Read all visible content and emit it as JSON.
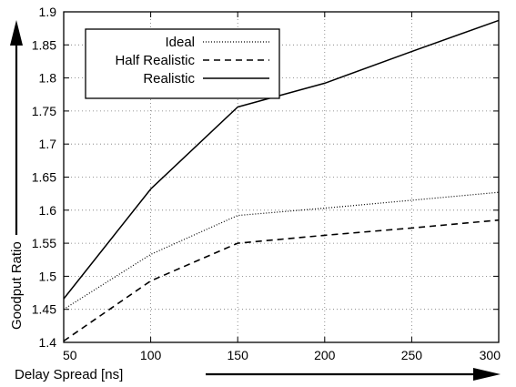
{
  "chart_data": {
    "type": "line",
    "xlabel": "Delay Spread [ns]",
    "ylabel": "Goodput Ratio",
    "xlim": [
      50,
      300
    ],
    "ylim": [
      1.4,
      1.9
    ],
    "xticks": [
      50,
      100,
      150,
      200,
      250,
      300
    ],
    "yticks": [
      1.4,
      1.45,
      1.5,
      1.55,
      1.6,
      1.65,
      1.7,
      1.75,
      1.8,
      1.85,
      1.9
    ],
    "grid": true,
    "legend_position": "top-left",
    "x": [
      50,
      100,
      150,
      200,
      250,
      300
    ],
    "series": [
      {
        "name": "Ideal",
        "style": "dotted",
        "values": [
          1.45,
          1.533,
          1.592,
          1.603,
          1.615,
          1.627
        ]
      },
      {
        "name": "Half Realistic",
        "style": "dashed",
        "values": [
          1.402,
          1.493,
          1.55,
          1.562,
          1.573,
          1.585
        ]
      },
      {
        "name": "Realistic",
        "style": "solid",
        "values": [
          1.466,
          1.632,
          1.756,
          1.792,
          1.84,
          1.887
        ]
      }
    ]
  }
}
